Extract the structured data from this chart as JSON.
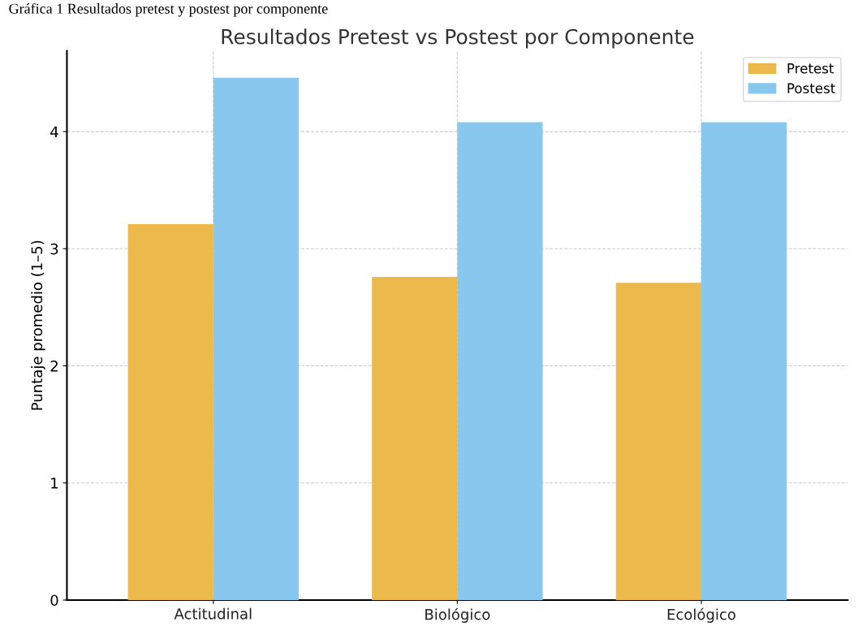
{
  "chart_data": {
    "type": "bar",
    "title": "Resultados Pretest vs Postest por Componente",
    "ylabel": "Puntaje promedio (1–5)",
    "annotations": [
      "Gráfica 1 Resultados pretest y postest por componente"
    ],
    "categories": [
      "Actitudinal",
      "Biológico",
      "Ecológico"
    ],
    "series": [
      {
        "name": "Pretest",
        "color": "#ebb94c",
        "values": [
          3.21,
          2.76,
          2.71
        ]
      },
      {
        "name": "Postest",
        "color": "#89c8ee",
        "values": [
          4.46,
          4.08,
          4.08
        ]
      }
    ],
    "ylim": [
      0,
      4.69
    ],
    "yticks": [
      0,
      1,
      2,
      3,
      4
    ],
    "grid": true,
    "legend": "top right"
  }
}
